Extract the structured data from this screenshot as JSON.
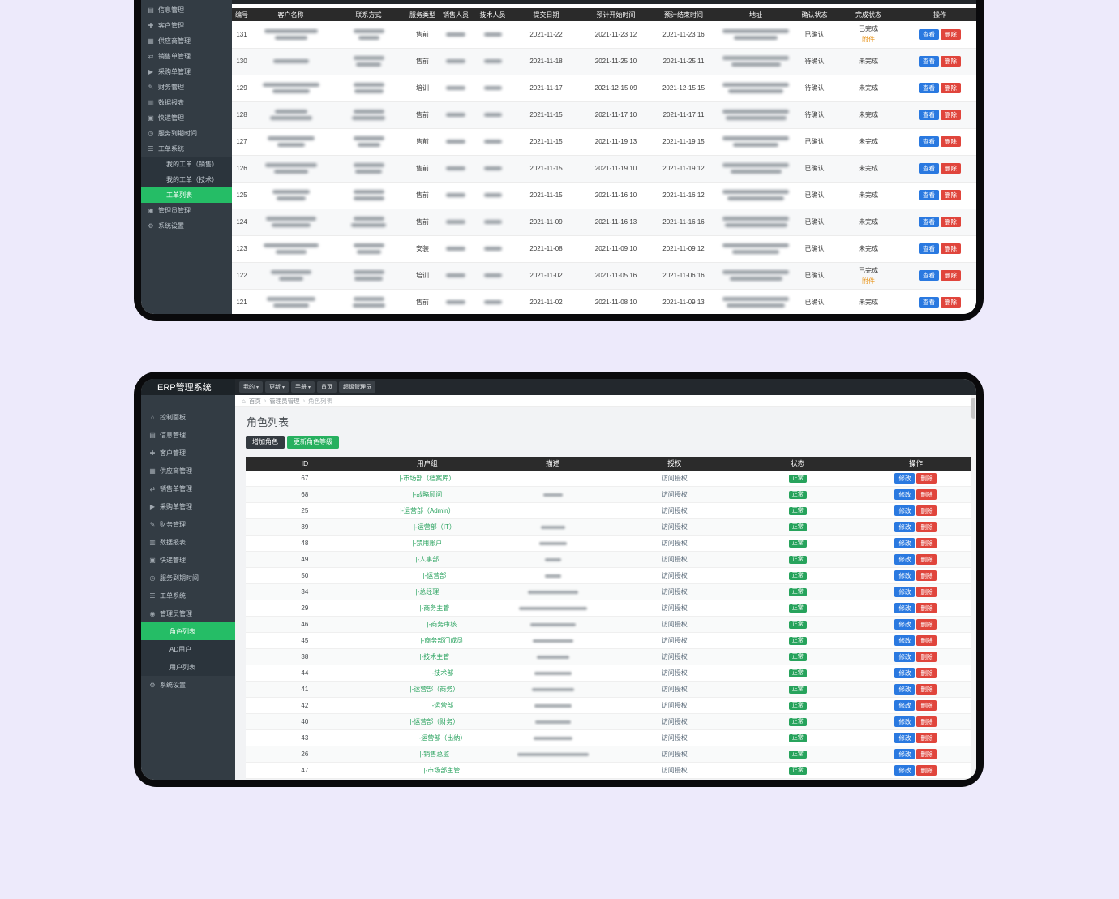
{
  "win1": {
    "sidebar": [
      {
        "label": "信息管理",
        "icon": "info-icon"
      },
      {
        "label": "客户管理",
        "icon": "customer-icon"
      },
      {
        "label": "供应商管理",
        "icon": "supplier-icon"
      },
      {
        "label": "销售单管理",
        "icon": "sales-order-icon"
      },
      {
        "label": "采购单管理",
        "icon": "purchase-order-icon"
      },
      {
        "label": "财务管理",
        "icon": "finance-icon"
      },
      {
        "label": "数据报表",
        "icon": "report-icon"
      },
      {
        "label": "快递管理",
        "icon": "express-icon"
      },
      {
        "label": "服务到期时间",
        "icon": "service-expiry-icon"
      },
      {
        "label": "工单系统",
        "icon": "ticket-icon"
      },
      {
        "label": "我的工单（销售）",
        "sub": true
      },
      {
        "label": "我的工单（技术）",
        "sub": true
      },
      {
        "label": "工单列表",
        "sub": true,
        "active": true
      },
      {
        "label": "管理员管理",
        "icon": "admin-icon"
      },
      {
        "label": "系统设置",
        "icon": "settings-icon"
      }
    ],
    "table": {
      "headers": [
        "编号",
        "客户名称",
        "联系方式",
        "服务类型",
        "销售人员",
        "技术人员",
        "提交日期",
        "预计开始时间",
        "预计结束时间",
        "地址",
        "确认状态",
        "完成状态",
        "操作"
      ],
      "actions": {
        "view": "查看",
        "del": "删除"
      },
      "attachment_label": "附件",
      "rows": [
        {
          "no": "131",
          "type": "售前",
          "date": "2021-11-22",
          "start": "2021-11-23 12",
          "end": "2021-11-23 16",
          "confirm": "已确认",
          "done": "已完成",
          "attachment": true
        },
        {
          "no": "130",
          "type": "售前",
          "date": "2021-11-18",
          "start": "2021-11-25 10",
          "end": "2021-11-25 11",
          "confirm": "待确认",
          "done": "未完成",
          "attachment": false
        },
        {
          "no": "129",
          "type": "培训",
          "date": "2021-11-17",
          "start": "2021-12-15 09",
          "end": "2021-12-15 15",
          "confirm": "待确认",
          "done": "未完成",
          "attachment": false
        },
        {
          "no": "128",
          "type": "售前",
          "date": "2021-11-15",
          "start": "2021-11-17 10",
          "end": "2021-11-17 11",
          "confirm": "待确认",
          "done": "未完成",
          "attachment": false
        },
        {
          "no": "127",
          "type": "售前",
          "date": "2021-11-15",
          "start": "2021-11-19 13",
          "end": "2021-11-19 15",
          "confirm": "已确认",
          "done": "未完成",
          "attachment": false
        },
        {
          "no": "126",
          "type": "售前",
          "date": "2021-11-15",
          "start": "2021-11-19 10",
          "end": "2021-11-19 12",
          "confirm": "已确认",
          "done": "未完成",
          "attachment": false
        },
        {
          "no": "125",
          "type": "售前",
          "date": "2021-11-15",
          "start": "2021-11-16 10",
          "end": "2021-11-16 12",
          "confirm": "已确认",
          "done": "未完成",
          "attachment": false
        },
        {
          "no": "124",
          "type": "售前",
          "date": "2021-11-09",
          "start": "2021-11-16 13",
          "end": "2021-11-16 16",
          "confirm": "已确认",
          "done": "未完成",
          "attachment": false
        },
        {
          "no": "123",
          "type": "安装",
          "date": "2021-11-08",
          "start": "2021-11-09 10",
          "end": "2021-11-09 12",
          "confirm": "已确认",
          "done": "未完成",
          "attachment": false
        },
        {
          "no": "122",
          "type": "培训",
          "date": "2021-11-02",
          "start": "2021-11-05 16",
          "end": "2021-11-06 16",
          "confirm": "已确认",
          "done": "已完成",
          "attachment": true
        },
        {
          "no": "121",
          "type": "售前",
          "date": "2021-11-02",
          "start": "2021-11-08 10",
          "end": "2021-11-09 13",
          "confirm": "已确认",
          "done": "未完成",
          "attachment": false
        }
      ]
    }
  },
  "win2": {
    "brand": "ERP管理系统",
    "topnav": [
      {
        "label": "我的",
        "caret": true
      },
      {
        "label": "更新",
        "caret": true
      },
      {
        "label": "手册",
        "caret": true
      },
      {
        "label": "首页",
        "caret": false
      },
      {
        "label": "超级管理员",
        "caret": false
      }
    ],
    "breadcrumb": [
      "首页",
      "管理员管理",
      "角色列表"
    ],
    "page_title": "角色列表",
    "buttons": {
      "add": "增加角色",
      "update": "更新角色等级"
    },
    "sidebar": [
      {
        "label": "控制面板",
        "icon": "dashboard-icon"
      },
      {
        "label": "信息管理",
        "icon": "info-icon"
      },
      {
        "label": "客户管理",
        "icon": "customer-icon"
      },
      {
        "label": "供应商管理",
        "icon": "supplier-icon"
      },
      {
        "label": "销售单管理",
        "icon": "sales-order-icon"
      },
      {
        "label": "采购单管理",
        "icon": "purchase-order-icon"
      },
      {
        "label": "财务管理",
        "icon": "finance-icon"
      },
      {
        "label": "数据报表",
        "icon": "report-icon"
      },
      {
        "label": "快递管理",
        "icon": "express-icon"
      },
      {
        "label": "服务到期时间",
        "icon": "service-expiry-icon"
      },
      {
        "label": "工单系统",
        "icon": "ticket-icon"
      },
      {
        "label": "管理员管理",
        "icon": "admin-icon"
      },
      {
        "label": "角色列表",
        "sub": true,
        "active": true
      },
      {
        "label": "AD用户",
        "sub": true
      },
      {
        "label": "用户列表",
        "sub": true
      },
      {
        "label": "系统设置",
        "icon": "settings-icon"
      }
    ],
    "table": {
      "headers": [
        "ID",
        "用户组",
        "描述",
        "授权",
        "状态",
        "操作"
      ],
      "auth_label": "访问授权",
      "status_label": "正常",
      "actions": {
        "edit": "修改",
        "del": "删除"
      },
      "rows": [
        {
          "id": "67",
          "group": "|-市场部（档案库）",
          "indent": 1,
          "desc": 0
        },
        {
          "id": "68",
          "group": "|-战略顾问",
          "indent": 1,
          "desc": 24
        },
        {
          "id": "25",
          "group": "|-运营部（Admin）",
          "indent": 1,
          "desc": 0
        },
        {
          "id": "39",
          "group": "|-运营部（IT）",
          "indent": 2,
          "desc": 30
        },
        {
          "id": "48",
          "group": "|-禁用账户",
          "indent": 1,
          "desc": 34
        },
        {
          "id": "49",
          "group": "|-人事部",
          "indent": 1,
          "desc": 20
        },
        {
          "id": "50",
          "group": "|-运营部",
          "indent": 2,
          "desc": 20
        },
        {
          "id": "34",
          "group": "|-总经理",
          "indent": 1,
          "desc": 62
        },
        {
          "id": "29",
          "group": "|-商务主管",
          "indent": 2,
          "desc": 84
        },
        {
          "id": "46",
          "group": "|-商务审核",
          "indent": 3,
          "desc": 56
        },
        {
          "id": "45",
          "group": "|-商务部门成员",
          "indent": 3,
          "desc": 50
        },
        {
          "id": "38",
          "group": "|-技术主管",
          "indent": 2,
          "desc": 40
        },
        {
          "id": "44",
          "group": "|-技术部",
          "indent": 3,
          "desc": 46
        },
        {
          "id": "41",
          "group": "|-运营部（商务）",
          "indent": 2,
          "desc": 52
        },
        {
          "id": "42",
          "group": "|-运营部",
          "indent": 3,
          "desc": 46
        },
        {
          "id": "40",
          "group": "|-运营部（财务）",
          "indent": 2,
          "desc": 44
        },
        {
          "id": "43",
          "group": "|-运营部（出纳）",
          "indent": 3,
          "desc": 48
        },
        {
          "id": "26",
          "group": "|-销售总监",
          "indent": 2,
          "desc": 88
        },
        {
          "id": "47",
          "group": "|-市场部主管",
          "indent": 3,
          "desc": 0
        }
      ]
    }
  }
}
